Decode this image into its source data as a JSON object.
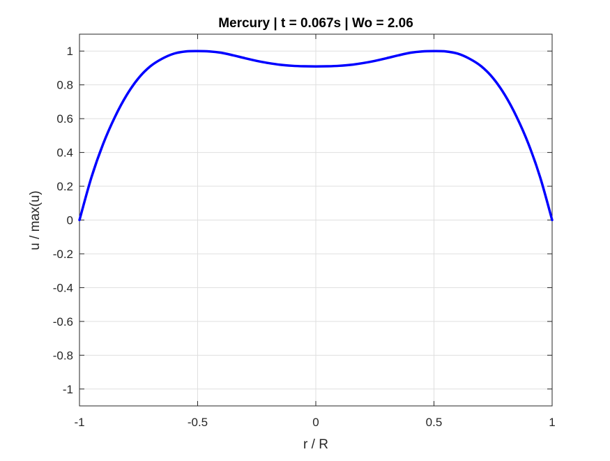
{
  "chart_data": {
    "type": "line",
    "title": "Mercury | t = 0.067s | Wo = 2.06",
    "xlabel": "r / R",
    "ylabel": "u / max(u)",
    "xlim": [
      -1,
      1
    ],
    "ylim": [
      -1.1,
      1.1
    ],
    "grid": true,
    "xticks": [
      -1,
      -0.5,
      0,
      0.5,
      1
    ],
    "xtick_labels": [
      "-1",
      "-0.5",
      "0",
      "0.5",
      "1"
    ],
    "yticks": [
      -1,
      -0.8,
      -0.6,
      -0.4,
      -0.2,
      0,
      0.2,
      0.4,
      0.6,
      0.8,
      1
    ],
    "ytick_labels": [
      "-1",
      "-0.8",
      "-0.6",
      "-0.4",
      "-0.2",
      "0",
      "0.2",
      "0.4",
      "0.6",
      "0.8",
      "1"
    ],
    "series": [
      {
        "name": "velocity profile",
        "color": "#0000ff",
        "x": [
          -1,
          -0.95,
          -0.9,
          -0.85,
          -0.8,
          -0.75,
          -0.7,
          -0.65,
          -0.6,
          -0.55,
          -0.5,
          -0.45,
          -0.4,
          -0.35,
          -0.3,
          -0.25,
          -0.2,
          -0.15,
          -0.1,
          -0.05,
          0,
          0.05,
          0.1,
          0.15,
          0.2,
          0.25,
          0.3,
          0.35,
          0.4,
          0.45,
          0.5,
          0.55,
          0.6,
          0.65,
          0.7,
          0.75,
          0.8,
          0.85,
          0.9,
          0.95,
          1
        ],
        "y": [
          0,
          0.25,
          0.45,
          0.61,
          0.74,
          0.84,
          0.91,
          0.955,
          0.985,
          0.998,
          1.0,
          0.998,
          0.99,
          0.975,
          0.958,
          0.942,
          0.929,
          0.919,
          0.913,
          0.91,
          0.909,
          0.91,
          0.913,
          0.919,
          0.929,
          0.942,
          0.958,
          0.975,
          0.99,
          0.998,
          1.0,
          0.998,
          0.985,
          0.955,
          0.91,
          0.84,
          0.74,
          0.61,
          0.45,
          0.25,
          0
        ]
      }
    ]
  }
}
